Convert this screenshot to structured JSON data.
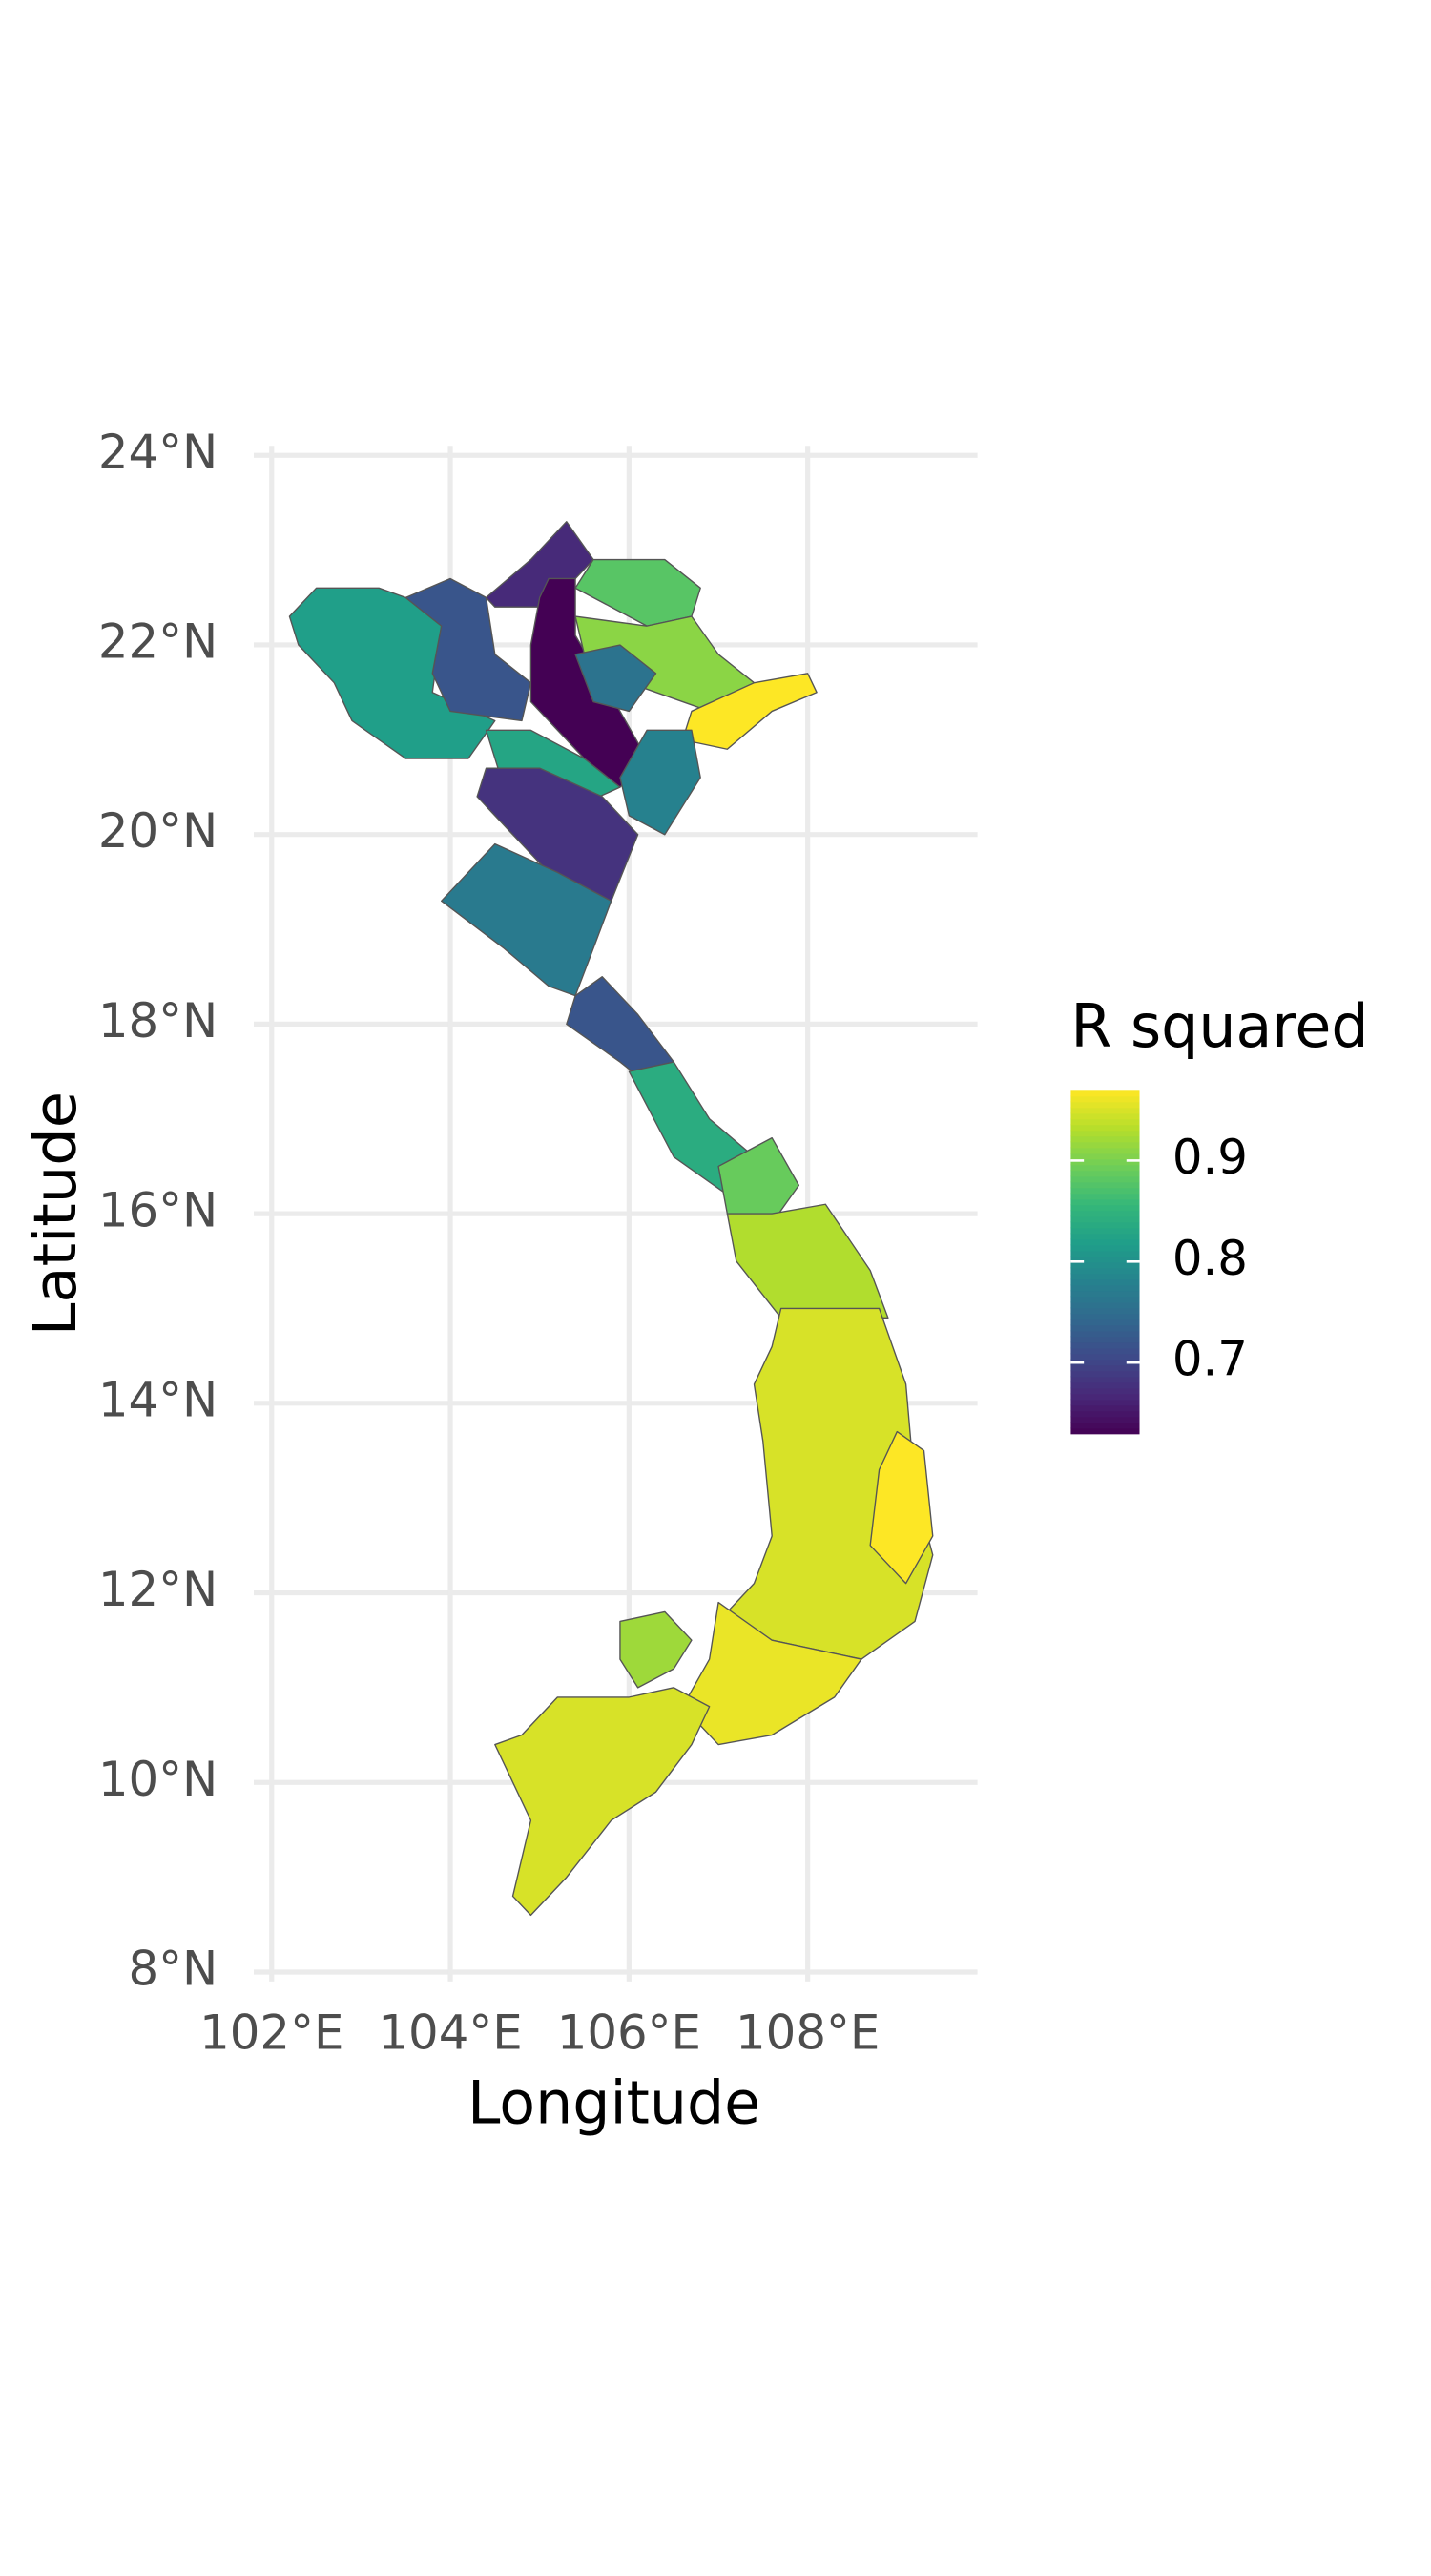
{
  "chart_data": {
    "type": "choropleth",
    "x_label": "Longitude",
    "y_label": "Latitude",
    "legend_title": "R squared",
    "colormap": "viridis",
    "xlim": [
      101.8,
      109.9
    ],
    "ylim": [
      7.9,
      24.1
    ],
    "xticks": [
      {
        "value": 102,
        "label": "102°E"
      },
      {
        "value": 104,
        "label": "104°E"
      },
      {
        "value": 106,
        "label": "106°E"
      },
      {
        "value": 108,
        "label": "108°E"
      }
    ],
    "yticks": [
      {
        "value": 8,
        "label": "8°N"
      },
      {
        "value": 10,
        "label": "10°N"
      },
      {
        "value": 12,
        "label": "12°N"
      },
      {
        "value": 14,
        "label": "14°N"
      },
      {
        "value": 16,
        "label": "16°N"
      },
      {
        "value": 18,
        "label": "18°N"
      },
      {
        "value": 20,
        "label": "20°N"
      },
      {
        "value": 22,
        "label": "22°N"
      },
      {
        "value": 24,
        "label": "24°N"
      }
    ],
    "grid": true,
    "colorbar_lim": [
      0.63,
      0.97
    ],
    "colorbar_ticks": [
      0.7,
      0.8,
      0.9
    ],
    "regions": [
      0.82,
      0.72,
      0.67,
      0.63,
      0.88,
      0.91,
      0.97,
      0.76,
      0.83,
      0.78,
      0.68,
      0.77,
      0.72,
      0.84,
      0.89,
      0.93,
      0.95,
      0.97,
      0.96,
      0.92,
      0.95
    ]
  }
}
